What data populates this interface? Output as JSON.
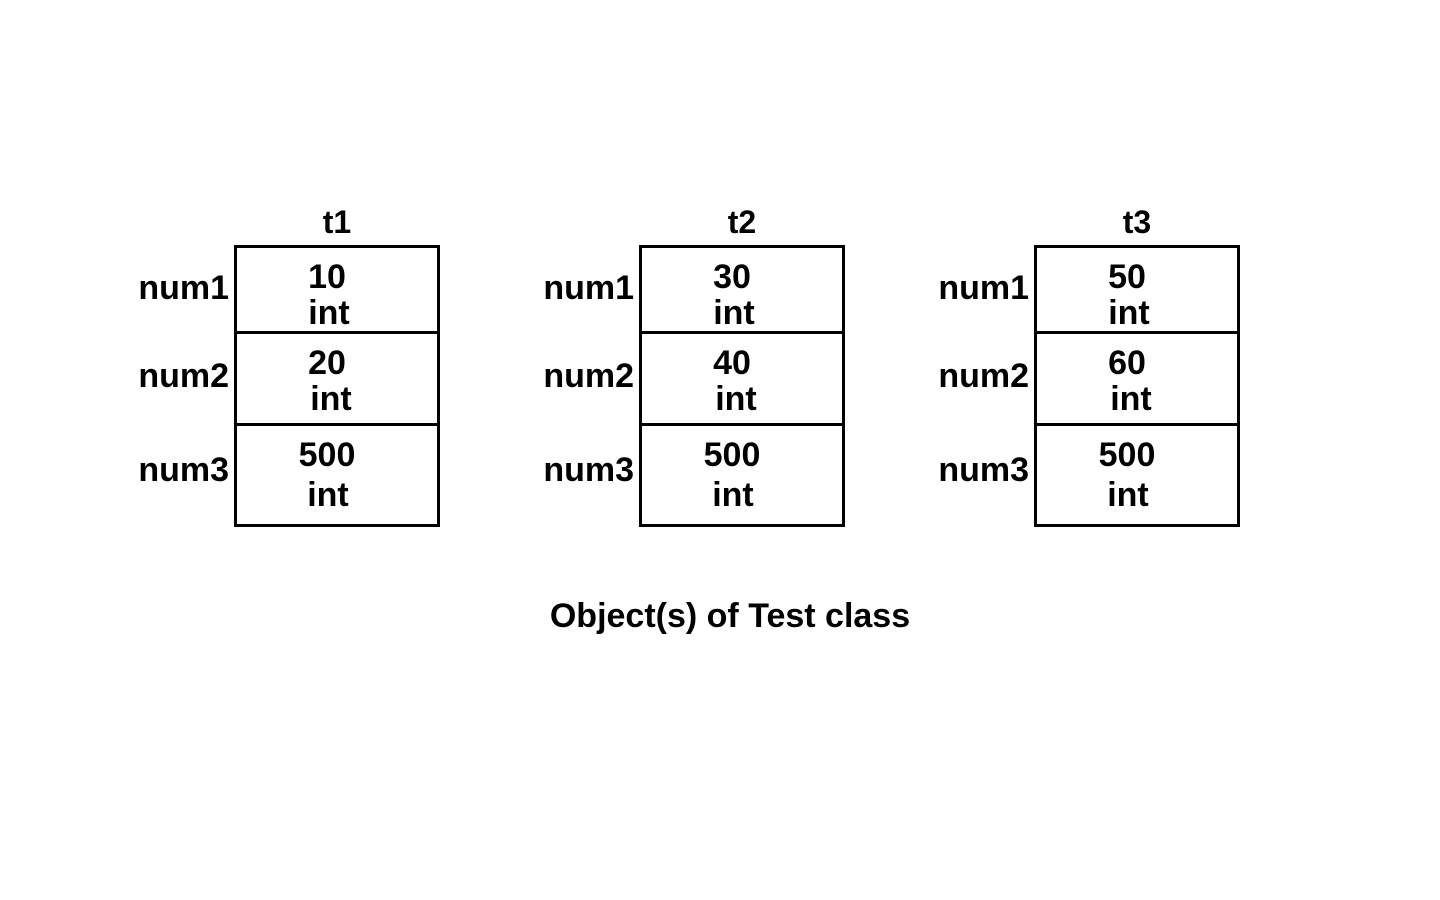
{
  "objects": [
    {
      "name": "t1",
      "fields": [
        {
          "label": "num1",
          "value": "10",
          "type": "int"
        },
        {
          "label": "num2",
          "value": "20",
          "type": "int"
        },
        {
          "label": "num3",
          "value": "500",
          "type": "int"
        }
      ]
    },
    {
      "name": "t2",
      "fields": [
        {
          "label": "num1",
          "value": "30",
          "type": "int"
        },
        {
          "label": "num2",
          "value": "40",
          "type": "int"
        },
        {
          "label": "num3",
          "value": "500",
          "type": "int"
        }
      ]
    },
    {
      "name": "t3",
      "fields": [
        {
          "label": "num1",
          "value": "50",
          "type": "int"
        },
        {
          "label": "num2",
          "value": "60",
          "type": "int"
        },
        {
          "label": "num3",
          "value": "500",
          "type": "int"
        }
      ]
    }
  ],
  "caption": "Object(s) of Test class"
}
